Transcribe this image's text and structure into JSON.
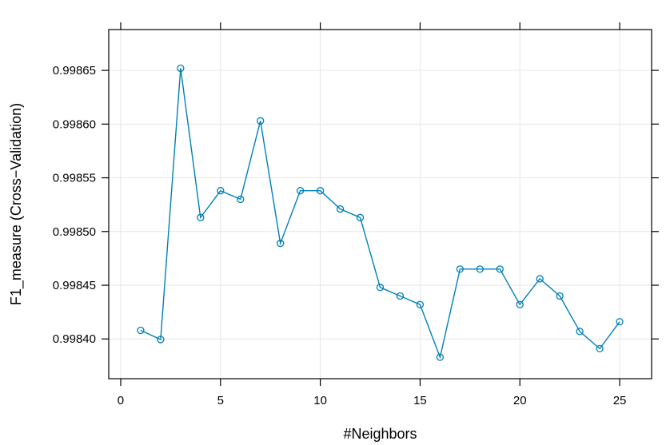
{
  "chart_data": {
    "type": "line",
    "xlabel": "#Neighbors",
    "ylabel": "F1_measure (Cross−Validation)",
    "xlim": [
      -0.6,
      26.6
    ],
    "ylim": [
      0.998363,
      0.998688
    ],
    "xticks": [
      0,
      5,
      10,
      15,
      20,
      25
    ],
    "yticks": [
      0.9984,
      0.99845,
      0.9985,
      0.99855,
      0.9986,
      0.99865
    ],
    "ytick_labels": [
      "0.99840",
      "0.99845",
      "0.99850",
      "0.99855",
      "0.99860",
      "0.99865"
    ],
    "grid": true,
    "series_color": "#0080b8",
    "x": [
      1,
      2,
      3,
      4,
      5,
      6,
      7,
      8,
      9,
      10,
      11,
      12,
      13,
      14,
      15,
      16,
      17,
      18,
      19,
      20,
      21,
      22,
      23,
      24,
      25
    ],
    "y": [
      0.998408,
      0.9983995,
      0.998652,
      0.998513,
      0.998538,
      0.99853,
      0.998603,
      0.998489,
      0.998538,
      0.998538,
      0.998521,
      0.998513,
      0.998448,
      0.99844,
      0.998432,
      0.998383,
      0.998465,
      0.998465,
      0.998465,
      0.998432,
      0.998456,
      0.99844,
      0.998407,
      0.998391,
      0.998416
    ]
  }
}
